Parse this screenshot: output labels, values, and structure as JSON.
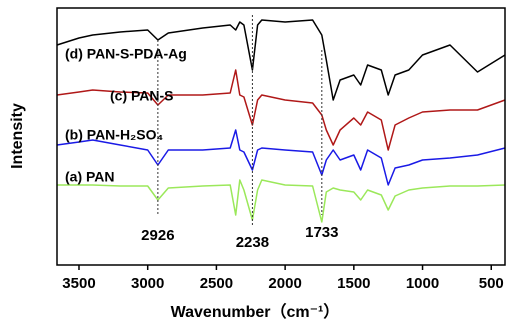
{
  "chart_data": {
    "type": "line",
    "xlabel": "Wavenumber（cm⁻¹）",
    "ylabel": "Intensity",
    "xlim": [
      3660,
      400
    ],
    "ylim": [
      0,
      257
    ],
    "xticks": [
      3500,
      3000,
      2500,
      2000,
      1500,
      1000,
      500
    ],
    "x": [
      3660,
      3500,
      3400,
      3200,
      3000,
      2926,
      2850,
      2600,
      2400,
      2360,
      2330,
      2300,
      2238,
      2200,
      2170,
      2000,
      1800,
      1733,
      1700,
      1650,
      1600,
      1500,
      1450,
      1400,
      1300,
      1250,
      1200,
      1100,
      1000,
      800,
      600,
      400
    ],
    "series": [
      {
        "name": "(d) PAN-S-PDA-Ag",
        "color": "#000000",
        "values": [
          220,
          227,
          230,
          233,
          235,
          225,
          232,
          237,
          240,
          235,
          243,
          240,
          195,
          240,
          245,
          243,
          245,
          230,
          205,
          165,
          185,
          190,
          180,
          200,
          195,
          170,
          190,
          195,
          210,
          220,
          193,
          210
        ]
      },
      {
        "name": "(c) PAN-S",
        "color": "#b01818",
        "values": [
          170,
          173,
          175,
          173,
          172,
          160,
          170,
          170,
          172,
          195,
          170,
          168,
          140,
          165,
          170,
          165,
          162,
          150,
          135,
          120,
          135,
          147,
          140,
          153,
          145,
          115,
          140,
          147,
          153,
          155,
          155,
          165
        ]
      },
      {
        "name": "(b) PAN-H₂SO₄",
        "color": "#1a1ae6",
        "values": [
          120,
          123,
          125,
          120,
          115,
          100,
          115,
          115,
          117,
          135,
          115,
          113,
          95,
          115,
          117,
          115,
          113,
          90,
          105,
          115,
          105,
          110,
          95,
          115,
          107,
          80,
          97,
          100,
          105,
          107,
          110,
          117
        ]
      },
      {
        "name": "(a) PAN",
        "color": "#9be85a",
        "values": [
          80,
          80,
          80,
          79,
          79,
          65,
          77,
          79,
          80,
          50,
          85,
          75,
          45,
          75,
          85,
          80,
          79,
          43,
          73,
          77,
          75,
          73,
          65,
          75,
          70,
          55,
          69,
          75,
          77,
          79,
          79,
          80
        ]
      }
    ],
    "peak_markers": [
      2926,
      2238,
      1733
    ]
  }
}
